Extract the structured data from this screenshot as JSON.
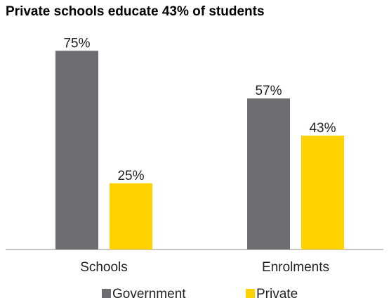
{
  "chart_data": {
    "type": "bar",
    "title": "Private schools educate 43% of students",
    "categories": [
      "Schools",
      "Enrolments"
    ],
    "series": [
      {
        "name": "Government",
        "values": [
          75,
          57
        ],
        "labels": [
          "75%",
          "57%"
        ],
        "color": "#6d6e71"
      },
      {
        "name": "Private",
        "values": [
          25,
          43
        ],
        "labels": [
          "25%",
          "43%"
        ],
        "color": "#ffd200"
      }
    ],
    "xlabel": "",
    "ylabel": "",
    "ylim": [
      0,
      100
    ],
    "grid": false,
    "legend": "bottom"
  }
}
